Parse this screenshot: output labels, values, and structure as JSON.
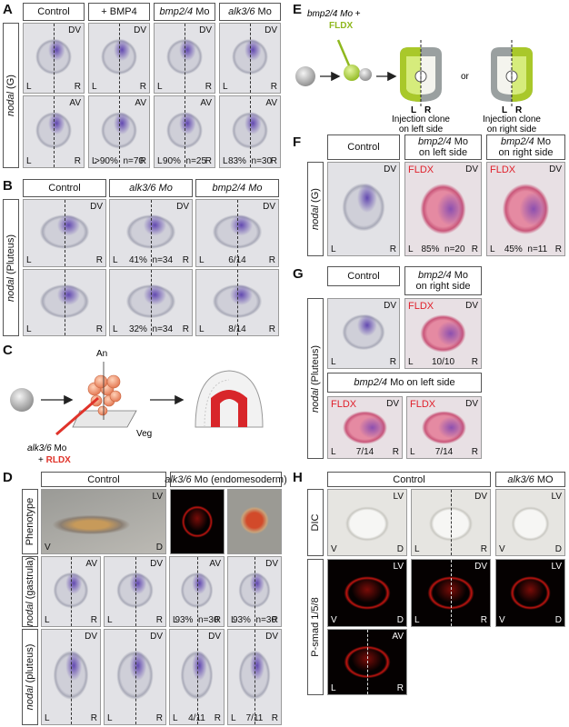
{
  "A": {
    "letter": "A",
    "headers": [
      {
        "text": "Control"
      },
      {
        "text": "+ BMP4"
      },
      {
        "gene": "bmp2/4",
        "text": " Mo"
      },
      {
        "gene": "alk3/6",
        "text": " Mo"
      }
    ],
    "row_labels": [
      {
        "gene": "nodal",
        "text": " (G)"
      }
    ],
    "tiles": [
      {
        "view": "DV",
        "left": "L",
        "right": "R"
      },
      {
        "view": "DV",
        "left": "L",
        "right": "R"
      },
      {
        "view": "DV",
        "left": "L",
        "right": "R"
      },
      {
        "view": "DV",
        "left": "L",
        "right": "R"
      },
      {
        "view": "AV",
        "left": "L",
        "right": "R"
      },
      {
        "view": "AV",
        "left": "L",
        "stat": ">90%",
        "n": "n=70",
        "right": "R"
      },
      {
        "view": "AV",
        "left": "L",
        "stat": "90%",
        "n": "n=25",
        "right": "R"
      },
      {
        "view": "AV",
        "left": "L",
        "stat": "83%",
        "n": "n=30",
        "right": "R"
      }
    ]
  },
  "B": {
    "letter": "B",
    "headers": [
      {
        "text": "Control"
      },
      {
        "gene": "alk3/6 Mo"
      },
      {
        "gene": "bmp2/4 Mo"
      }
    ],
    "row_labels": [
      {
        "gene": "nodal",
        "text": " (Pluteus)"
      }
    ],
    "tiles": [
      {
        "view": "DV",
        "left": "L",
        "right": "R"
      },
      {
        "view": "DV",
        "left": "L",
        "stat": "41%",
        "n": "n=34",
        "right": "R"
      },
      {
        "view": "DV",
        "left": "L",
        "stat": "6/14",
        "right": "R"
      },
      {
        "left": "L",
        "right": "R"
      },
      {
        "left": "L",
        "stat": "32%",
        "n": "n=34",
        "right": "R"
      },
      {
        "left": "L",
        "stat": "8/14",
        "right": "R"
      }
    ]
  },
  "C": {
    "letter": "C",
    "animal": "An",
    "vegetal": "Veg",
    "injection": {
      "gene": "alk3/6",
      "text": " Mo"
    },
    "plus": "+ ",
    "tracer": "RLDX"
  },
  "D": {
    "letter": "D",
    "headers": [
      {
        "text": "Control"
      },
      {
        "gene": "alk3/6",
        "text": " Mo (endomesoderm)"
      }
    ],
    "row_labels": [
      {
        "text": "Phenotype"
      },
      {
        "gene": "nodal",
        "text": " (gastrula)"
      },
      {
        "gene": "nodal",
        "text": " (pluteus)"
      }
    ],
    "tiles": [
      {
        "view": "LV",
        "left": "V",
        "right": "D"
      },
      {},
      {},
      {
        "view": "AV",
        "left": "L",
        "right": "R"
      },
      {
        "view": "DV",
        "left": "L",
        "right": "R"
      },
      {
        "view": "AV",
        "left": "L",
        "stat": "93%",
        "n": "n=30",
        "right": "R"
      },
      {
        "view": "DV",
        "left": "L",
        "stat": "93%",
        "n": "n=30",
        "right": "R"
      },
      {
        "view": "DV",
        "left": "L",
        "right": "R"
      },
      {
        "view": "DV",
        "left": "L",
        "right": "R"
      },
      {
        "view": "DV",
        "left": "L",
        "stat": "4/11",
        "right": "R"
      },
      {
        "view": "DV",
        "left": "L",
        "stat": "7/11",
        "right": "R"
      }
    ]
  },
  "E": {
    "letter": "E",
    "injection": {
      "gene": "bmp2/4 Mo",
      "text": " +"
    },
    "tracer": "FLDX",
    "clone_left": {
      "left": "L",
      "right": "R",
      "caption": [
        "Injection clone",
        "on left side"
      ]
    },
    "or": "or",
    "clone_right": {
      "left": "L",
      "right": "R",
      "caption": [
        "Injection clone",
        "on right side"
      ]
    }
  },
  "F": {
    "letter": "F",
    "headers": [
      {
        "text": "Control"
      },
      {
        "gene": "bmp2/4",
        "text": " Mo",
        "line2": "on left side"
      },
      {
        "gene": "bmp2/4",
        "text": " Mo",
        "line2": "on right side"
      }
    ],
    "row_labels": [
      {
        "gene": "nodal",
        "text": " (G)"
      }
    ],
    "tiles": [
      {
        "view": "DV",
        "left": "L",
        "right": "R"
      },
      {
        "tracer": "FLDX",
        "view": "DV",
        "left": "L",
        "stat": "85%",
        "n": "n=20",
        "right": "R"
      },
      {
        "tracer": "FLDX",
        "view": "DV",
        "left": "L",
        "stat": "45%",
        "n": "n=11",
        "right": "R"
      }
    ]
  },
  "G": {
    "letter": "G",
    "headers": [
      {
        "text": "Control"
      },
      {
        "gene": "bmp2/4",
        "text": " Mo",
        "line2": "on right side"
      },
      {
        "gene": "bmp2/4",
        "text": " Mo on left side"
      }
    ],
    "row_labels": [
      {
        "gene": "nodal",
        "text": " (Pluteus)"
      }
    ],
    "tiles": [
      {
        "view": "DV",
        "left": "L",
        "right": "R"
      },
      {
        "tracer": "FLDX",
        "view": "DV",
        "left": "L",
        "stat": "10/10",
        "right": "R"
      },
      {
        "tracer": "FLDX",
        "view": "DV",
        "left": "L",
        "stat": "7/14",
        "right": "R"
      },
      {
        "tracer": "FLDX",
        "view": "DV",
        "left": "L",
        "stat": "7/14",
        "right": "R"
      }
    ]
  },
  "H": {
    "letter": "H",
    "headers": [
      {
        "text": "Control"
      },
      {
        "gene": "alk3/6",
        "text": " MO"
      }
    ],
    "row_labels": [
      {
        "text": "DIC"
      },
      {
        "text": "P-smad 1/5/8"
      }
    ],
    "tiles": [
      {
        "view": "LV",
        "left": "V",
        "right": "D"
      },
      {
        "view": "DV",
        "left": "L",
        "right": "R"
      },
      {
        "view": "LV",
        "left": "V",
        "right": "D"
      },
      {
        "view": "LV",
        "left": "V",
        "right": "D"
      },
      {
        "view": "DV",
        "left": "L",
        "right": "R"
      },
      {
        "view": "LV",
        "left": "V",
        "right": "D"
      },
      {
        "view": "AV",
        "left": "L",
        "right": "R"
      }
    ]
  }
}
